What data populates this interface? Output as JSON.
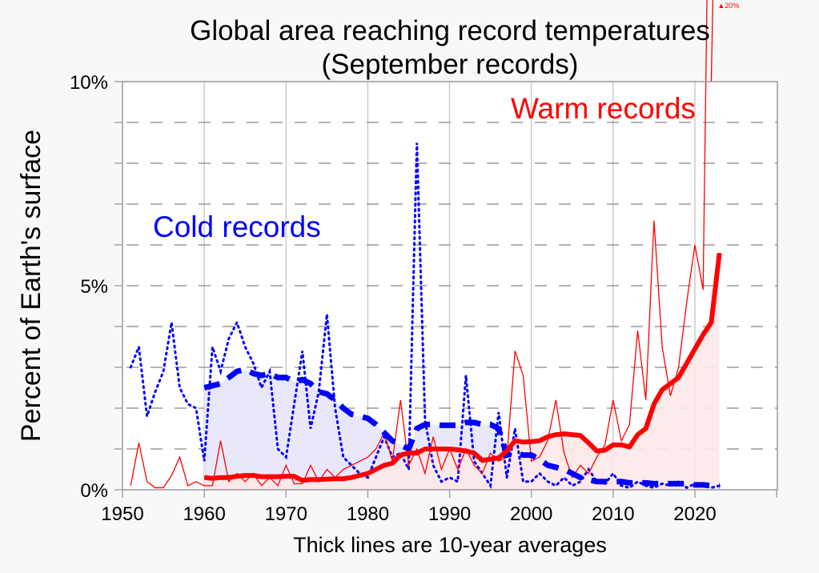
{
  "chart_data": {
    "type": "line",
    "title": "Global area reaching record temperatures",
    "subtitle": "(September records)",
    "xlabel": "Thick lines are 10-year averages",
    "ylabel": "Percent of Earth's surface",
    "xlim": [
      1950,
      2030
    ],
    "ylim": [
      0,
      10
    ],
    "x_ticks": [
      "1950",
      "1960",
      "1970",
      "1980",
      "1990",
      "2000",
      "2010",
      "2020"
    ],
    "y_ticks": [
      "0%",
      "5%",
      "10%"
    ],
    "grid": true,
    "annotations": {
      "warm_label": "Warm records",
      "cold_label": "Cold records",
      "offscale_label": "▲20%"
    },
    "colors": {
      "warm": "#ff0000",
      "cold": "#0000ff",
      "warm_fill": "#fde8e8",
      "cold_fill": "#e8e8fa"
    },
    "series": [
      {
        "name": "Warm records (annual)",
        "style": "thin-solid",
        "x": [
          1951,
          1952,
          1953,
          1954,
          1955,
          1956,
          1957,
          1958,
          1959,
          1960,
          1961,
          1962,
          1963,
          1964,
          1965,
          1966,
          1967,
          1968,
          1969,
          1970,
          1971,
          1972,
          1973,
          1974,
          1975,
          1976,
          1977,
          1978,
          1979,
          1980,
          1981,
          1982,
          1983,
          1984,
          1985,
          1986,
          1987,
          1988,
          1989,
          1990,
          1991,
          1992,
          1993,
          1994,
          1995,
          1996,
          1997,
          1998,
          1999,
          2000,
          2001,
          2002,
          2003,
          2004,
          2005,
          2006,
          2007,
          2008,
          2009,
          2010,
          2011,
          2012,
          2013,
          2014,
          2015,
          2016,
          2017,
          2018,
          2019,
          2020,
          2021,
          2022
        ],
        "values": [
          0.1,
          1.15,
          0.2,
          0.05,
          0.05,
          0.35,
          0.8,
          0.1,
          0.2,
          0.1,
          0.1,
          1.2,
          0.2,
          0.4,
          0.2,
          0.4,
          0.1,
          0.3,
          0.1,
          0.6,
          0.15,
          0.15,
          0.6,
          0.2,
          0.5,
          0.3,
          0.5,
          0.6,
          0.7,
          0.8,
          1.0,
          1.4,
          0.7,
          2.2,
          0.6,
          1.0,
          0.4,
          1.3,
          0.5,
          1.0,
          0.5,
          1.0,
          0.6,
          0.4,
          0.9,
          0.7,
          0.8,
          3.4,
          2.8,
          0.7,
          0.8,
          1.2,
          2.2,
          0.9,
          0.3,
          0.6,
          0.4,
          0.8,
          1.1,
          2.2,
          1.2,
          1.6,
          3.9,
          2.2,
          6.6,
          3.5,
          2.3,
          3.0,
          4.6,
          6.0,
          4.9,
          20.0
        ]
      },
      {
        "name": "Warm records (10-year average)",
        "style": "thick-solid",
        "x": [
          1960,
          1961,
          1962,
          1963,
          1964,
          1965,
          1966,
          1967,
          1968,
          1969,
          1970,
          1971,
          1972,
          1973,
          1974,
          1975,
          1976,
          1977,
          1978,
          1979,
          1980,
          1981,
          1982,
          1983,
          1984,
          1985,
          1986,
          1987,
          1988,
          1989,
          1990,
          1991,
          1992,
          1993,
          1994,
          1995,
          1996,
          1997,
          1998,
          1999,
          2000,
          2001,
          2002,
          2003,
          2004,
          2005,
          2006,
          2007,
          2008,
          2009,
          2010,
          2011,
          2012,
          2013,
          2014,
          2015,
          2016,
          2017,
          2018,
          2019,
          2020,
          2021,
          2022,
          2023
        ],
        "values": [
          0.3,
          0.28,
          0.3,
          0.3,
          0.33,
          0.35,
          0.35,
          0.32,
          0.32,
          0.32,
          0.33,
          0.33,
          0.23,
          0.25,
          0.25,
          0.26,
          0.27,
          0.27,
          0.3,
          0.35,
          0.4,
          0.5,
          0.6,
          0.65,
          0.85,
          0.9,
          0.9,
          1.0,
          1.0,
          1.0,
          1.0,
          0.98,
          0.95,
          0.9,
          0.72,
          0.75,
          0.78,
          0.95,
          1.2,
          1.17,
          1.18,
          1.2,
          1.3,
          1.35,
          1.37,
          1.35,
          1.33,
          1.15,
          0.95,
          0.97,
          1.1,
          1.1,
          1.05,
          1.35,
          1.5,
          2.1,
          2.45,
          2.6,
          2.75,
          3.1,
          3.45,
          3.8,
          4.1,
          5.8
        ]
      },
      {
        "name": "Cold records (annual)",
        "style": "dotted",
        "x": [
          1951,
          1952,
          1953,
          1954,
          1955,
          1956,
          1957,
          1958,
          1959,
          1960,
          1961,
          1962,
          1963,
          1964,
          1965,
          1966,
          1967,
          1968,
          1969,
          1970,
          1971,
          1972,
          1973,
          1974,
          1975,
          1976,
          1977,
          1978,
          1979,
          1980,
          1981,
          1982,
          1983,
          1984,
          1985,
          1986,
          1987,
          1988,
          1989,
          1990,
          1991,
          1992,
          1993,
          1994,
          1995,
          1996,
          1997,
          1998,
          1999,
          2000,
          2001,
          2002,
          2003,
          2004,
          2005,
          2006,
          2007,
          2008,
          2009,
          2010,
          2011,
          2012,
          2013,
          2014,
          2015,
          2016,
          2017,
          2018,
          2019,
          2020,
          2021,
          2022,
          2023
        ],
        "values": [
          3.0,
          3.5,
          1.8,
          2.4,
          2.9,
          4.1,
          2.5,
          2.1,
          2.0,
          0.7,
          3.5,
          2.9,
          3.7,
          4.1,
          3.5,
          3.1,
          2.5,
          2.9,
          1.0,
          0.8,
          2.1,
          3.4,
          1.5,
          2.4,
          4.3,
          2.0,
          0.8,
          0.6,
          0.4,
          0.3,
          0.8,
          1.3,
          0.8,
          0.9,
          0.5,
          8.5,
          1.7,
          0.6,
          0.2,
          0.3,
          0.2,
          2.8,
          0.7,
          0.4,
          0.1,
          1.9,
          0.3,
          1.5,
          0.2,
          0.2,
          0.4,
          0.2,
          0.1,
          0.3,
          0.1,
          0.2,
          0.5,
          0.2,
          0.15,
          0.4,
          0.1,
          0.05,
          0.2,
          0.1,
          0.05,
          0.15,
          0.1,
          0.2,
          0.05,
          0.15,
          0.1,
          0.05,
          0.1
        ]
      },
      {
        "name": "Cold records (10-year average)",
        "style": "thick-dashed",
        "x": [
          1960,
          1961,
          1962,
          1963,
          1964,
          1965,
          1966,
          1967,
          1968,
          1969,
          1970,
          1971,
          1972,
          1973,
          1974,
          1975,
          1976,
          1977,
          1978,
          1979,
          1980,
          1981,
          1982,
          1983,
          1984,
          1985,
          1986,
          1987,
          1988,
          1989,
          1990,
          1991,
          1992,
          1993,
          1994,
          1995,
          1996,
          1997,
          1998,
          1999,
          2000,
          2001,
          2002,
          2003,
          2004,
          2005,
          2006,
          2007,
          2008,
          2009,
          2010,
          2011,
          2012,
          2013,
          2014,
          2015,
          2016,
          2017,
          2018,
          2019,
          2020,
          2021,
          2022,
          2023
        ],
        "values": [
          2.5,
          2.55,
          2.6,
          2.75,
          2.9,
          2.95,
          2.85,
          2.8,
          2.85,
          2.75,
          2.75,
          2.65,
          2.7,
          2.6,
          2.4,
          2.35,
          2.2,
          2.0,
          1.85,
          1.8,
          1.75,
          1.6,
          1.4,
          1.2,
          1.1,
          1.0,
          1.5,
          1.6,
          1.6,
          1.58,
          1.58,
          1.58,
          1.65,
          1.65,
          1.6,
          1.6,
          1.5,
          0.85,
          0.9,
          0.85,
          0.85,
          0.75,
          0.6,
          0.55,
          0.5,
          0.4,
          0.3,
          0.25,
          0.2,
          0.2,
          0.2,
          0.2,
          0.17,
          0.17,
          0.17,
          0.15,
          0.15,
          0.15,
          0.15,
          0.15,
          0.12,
          0.12,
          0.1,
          0.1
        ]
      }
    ]
  }
}
